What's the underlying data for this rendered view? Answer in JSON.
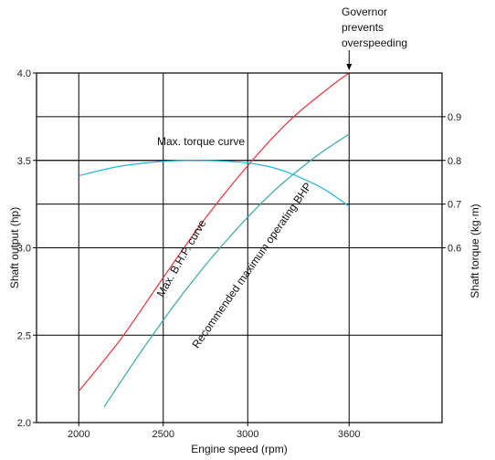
{
  "chart_data": {
    "type": "line",
    "title": "",
    "xlabel": "Engine speed (rpm)",
    "ylabel": "Shaft output (hp)",
    "y2label": "Shaft torque (kg·m)",
    "x_ticks": [
      2000,
      2500,
      3000,
      3600
    ],
    "y_ticks": [
      2.0,
      2.5,
      3.0,
      3.5,
      4.0
    ],
    "y_tick_labels": [
      "2.0",
      "2.5",
      "3.0",
      "3.5",
      "4.0"
    ],
    "y2_ticks": [
      0.6,
      0.7,
      0.8,
      0.9
    ],
    "y2_tick_labels": [
      "0.6",
      "0.7",
      "0.8",
      "0.9"
    ],
    "xlim": [
      1750,
      4150
    ],
    "ylim": [
      2.0,
      4.0
    ],
    "y2_axis_map": {
      "y2": [
        0.6,
        0.9
      ],
      "y_equiv": [
        3.0,
        3.75
      ]
    },
    "grid": true,
    "series": [
      {
        "name": "Max. B.H.P. curve",
        "axis": "left",
        "color": "#e8333d",
        "x": [
          2000,
          2250,
          2500,
          2750,
          3000,
          3250,
          3500,
          3600
        ],
        "y": [
          2.18,
          2.48,
          2.83,
          3.17,
          3.47,
          3.73,
          3.93,
          4.0
        ]
      },
      {
        "name": "Recommended maximum operating BHP",
        "axis": "left",
        "color": "#3aa8a0",
        "x": [
          2150,
          2400,
          2650,
          2900,
          3150,
          3400,
          3600
        ],
        "y": [
          2.09,
          2.45,
          2.78,
          3.07,
          3.32,
          3.52,
          3.65
        ]
      },
      {
        "name": "Max. torque curve",
        "axis": "right",
        "color": "#26b3d6",
        "x": [
          2000,
          2300,
          2700,
          3100,
          3400,
          3600
        ],
        "y": [
          0.765,
          0.79,
          0.8,
          0.788,
          0.745,
          0.695
        ]
      }
    ],
    "annotations": {
      "governor": [
        "Governor",
        "prevents",
        "overspeeding"
      ],
      "governor_at_x": 3600
    }
  }
}
